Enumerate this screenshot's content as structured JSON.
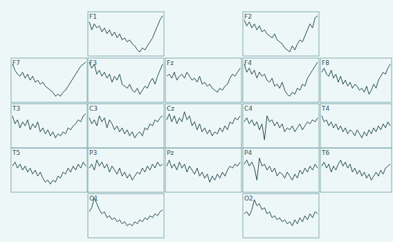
{
  "chart_data": [
    {
      "type": "line",
      "title": "F1",
      "color": "#1f4750",
      "ylim": [
        -10,
        10
      ],
      "tick_labels": false,
      "values": [
        6,
        2,
        5,
        3,
        4,
        1,
        3,
        0,
        2,
        -1,
        1,
        -2,
        0,
        -3,
        -2,
        -4,
        -3,
        -5,
        -6,
        -8,
        -9,
        -7,
        -8,
        -6,
        -4,
        -2,
        1,
        4,
        7,
        9
      ]
    },
    {
      "type": "line",
      "title": "F2",
      "color": "#1f4750",
      "ylim": [
        -10,
        10
      ],
      "tick_labels": false,
      "values": [
        7,
        4,
        6,
        3,
        5,
        2,
        4,
        1,
        2,
        0,
        -1,
        -2,
        0,
        -3,
        -4,
        -5,
        -7,
        -8,
        -9,
        -6,
        -8,
        -5,
        -3,
        -4,
        -1,
        2,
        5,
        3,
        8,
        9
      ]
    },
    {
      "type": "line",
      "title": "F7",
      "color": "#1f4750",
      "ylim": [
        -10,
        10
      ],
      "tick_labels": false,
      "values": [
        8,
        5,
        3,
        2,
        4,
        1,
        3,
        0,
        2,
        -1,
        0,
        -2,
        -1,
        -3,
        -4,
        -5,
        -6,
        -8,
        -7,
        -8,
        -6,
        -5,
        -3,
        -1,
        1,
        3,
        5,
        7,
        8,
        9
      ]
    },
    {
      "type": "line",
      "title": "F3",
      "color": "#1f4750",
      "ylim": [
        -10,
        10
      ],
      "tick_labels": false,
      "values": [
        9,
        6,
        8,
        3,
        5,
        2,
        4,
        1,
        3,
        -1,
        2,
        0,
        3,
        -2,
        -3,
        -4,
        -2,
        -5,
        -6,
        -4,
        -7,
        -5,
        -3,
        -4,
        -1,
        1,
        -2,
        2,
        5,
        8
      ]
    },
    {
      "type": "line",
      "title": "Fz",
      "color": "#1f4750",
      "ylim": [
        -10,
        10
      ],
      "tick_labels": false,
      "values": [
        2,
        3,
        1,
        4,
        0,
        2,
        3,
        1,
        4,
        2,
        0,
        1,
        -1,
        2,
        -2,
        -1,
        -3,
        -2,
        -4,
        -5,
        -6,
        -4,
        -5,
        -3,
        -2,
        1,
        3,
        2,
        4,
        6
      ]
    },
    {
      "type": "line",
      "title": "F4",
      "color": "#1f4750",
      "ylim": [
        -10,
        10
      ],
      "tick_labels": false,
      "values": [
        8,
        4,
        6,
        3,
        5,
        1,
        4,
        2,
        3,
        0,
        -1,
        1,
        -3,
        -2,
        -4,
        -1,
        -5,
        -7,
        -8,
        -6,
        -7,
        -4,
        -5,
        -2,
        -3,
        1,
        3,
        5,
        7,
        9
      ]
    },
    {
      "type": "line",
      "title": "F8",
      "color": "#1f4750",
      "ylim": [
        -10,
        10
      ],
      "tick_labels": false,
      "values": [
        4,
        6,
        3,
        2,
        5,
        1,
        3,
        -1,
        2,
        -2,
        0,
        -3,
        -1,
        -4,
        -2,
        -3,
        -5,
        -4,
        -6,
        -3,
        -7,
        -5,
        -2,
        -4,
        0,
        2,
        4,
        3,
        6,
        8
      ]
    },
    {
      "type": "line",
      "title": "T3",
      "color": "#1f4750",
      "ylim": [
        -10,
        10
      ],
      "tick_labels": false,
      "values": [
        5,
        1,
        3,
        -1,
        2,
        0,
        3,
        -2,
        1,
        -1,
        2,
        -3,
        -1,
        -4,
        -2,
        -5,
        -3,
        -6,
        -4,
        -5,
        -3,
        -4,
        -1,
        -2,
        0,
        1,
        3,
        2,
        5,
        6
      ]
    },
    {
      "type": "line",
      "title": "C3",
      "color": "#1f4750",
      "ylim": [
        -10,
        10
      ],
      "tick_labels": false,
      "values": [
        4,
        1,
        3,
        0,
        5,
        2,
        4,
        -1,
        3,
        1,
        -2,
        0,
        -3,
        -1,
        -4,
        -2,
        -5,
        -3,
        -6,
        -4,
        -3,
        -5,
        -1,
        -2,
        1,
        0,
        3,
        2,
        4,
        5
      ]
    },
    {
      "type": "line",
      "title": "Cz",
      "color": "#1f4750",
      "ylim": [
        -10,
        10
      ],
      "tick_labels": false,
      "values": [
        3,
        6,
        2,
        5,
        1,
        4,
        2,
        7,
        3,
        5,
        0,
        2,
        -2,
        1,
        -3,
        -1,
        -4,
        -2,
        -5,
        -3,
        -4,
        -1,
        -3,
        0,
        -2,
        2,
        1,
        4,
        3,
        5
      ]
    },
    {
      "type": "line",
      "title": "C4",
      "color": "#1f4750",
      "ylim": [
        -10,
        10
      ],
      "tick_labels": false,
      "values": [
        2,
        4,
        1,
        3,
        0,
        2,
        -2,
        1,
        -7,
        5,
        2,
        3,
        0,
        2,
        -1,
        1,
        -3,
        -1,
        -2,
        0,
        -3,
        -1,
        1,
        -2,
        0,
        2,
        1,
        3,
        2,
        4
      ]
    },
    {
      "type": "line",
      "title": "T4",
      "color": "#1f4750",
      "ylim": [
        -10,
        10
      ],
      "tick_labels": false,
      "values": [
        5,
        2,
        3,
        0,
        2,
        -1,
        1,
        -2,
        0,
        -3,
        -1,
        -4,
        -2,
        -3,
        -5,
        -2,
        -4,
        -6,
        -3,
        -5,
        -2,
        -4,
        -1,
        -3,
        0,
        -2,
        1,
        -1,
        2,
        0
      ]
    },
    {
      "type": "line",
      "title": "T5",
      "color": "#1f4750",
      "ylim": [
        -10,
        10
      ],
      "tick_labels": false,
      "values": [
        2,
        4,
        1,
        3,
        0,
        2,
        -1,
        1,
        -2,
        0,
        -3,
        -1,
        -4,
        -6,
        -5,
        -7,
        -5,
        -6,
        -3,
        -4,
        -1,
        -2,
        1,
        -1,
        2,
        0,
        3,
        1,
        4,
        2
      ]
    },
    {
      "type": "line",
      "title": "P3",
      "color": "#1f4750",
      "ylim": [
        -10,
        10
      ],
      "tick_labels": false,
      "values": [
        1,
        3,
        0,
        5,
        2,
        4,
        1,
        3,
        -1,
        2,
        0,
        -2,
        1,
        -3,
        -1,
        -4,
        -2,
        -5,
        -3,
        -1,
        -2,
        1,
        -1,
        2,
        0,
        3,
        1,
        4,
        2,
        3
      ]
    },
    {
      "type": "line",
      "title": "Pz",
      "color": "#1f4750",
      "ylim": [
        -10,
        10
      ],
      "tick_labels": false,
      "values": [
        2,
        5,
        1,
        3,
        0,
        4,
        1,
        3,
        -1,
        2,
        0,
        -2,
        1,
        -3,
        -1,
        -4,
        -2,
        -6,
        -3,
        -5,
        -2,
        -4,
        -1,
        -3,
        0,
        2,
        1,
        3,
        2,
        4
      ]
    },
    {
      "type": "line",
      "title": "P4",
      "color": "#1f4750",
      "ylim": [
        -10,
        10
      ],
      "tick_labels": false,
      "values": [
        3,
        5,
        2,
        4,
        1,
        -5,
        6,
        2,
        3,
        0,
        2,
        -1,
        1,
        -3,
        -1,
        -2,
        -4,
        -1,
        -3,
        -5,
        -2,
        -4,
        0,
        -2,
        1,
        -1,
        2,
        0,
        3,
        1
      ]
    },
    {
      "type": "line",
      "title": "T6",
      "color": "#1f4750",
      "ylim": [
        -10,
        10
      ],
      "tick_labels": false,
      "values": [
        2,
        4,
        1,
        3,
        -1,
        2,
        0,
        3,
        5,
        2,
        4,
        1,
        3,
        -1,
        1,
        -2,
        0,
        -3,
        -1,
        -4,
        -2,
        -5,
        -3,
        -1,
        -3,
        0,
        -2,
        1,
        2,
        3
      ]
    },
    {
      "type": "line",
      "title": "O1",
      "color": "#1f4750",
      "ylim": [
        -10,
        10
      ],
      "tick_labels": false,
      "values": [
        2,
        4,
        9,
        6,
        3,
        1,
        2,
        -1,
        0,
        -2,
        -1,
        -3,
        -2,
        -4,
        -3,
        -5,
        -4,
        -5,
        -3,
        -4,
        -2,
        -3,
        -1,
        -2,
        0,
        -1,
        1,
        0,
        2,
        3
      ]
    },
    {
      "type": "line",
      "title": "O2",
      "color": "#1f4750",
      "ylim": [
        -10,
        10
      ],
      "tick_labels": false,
      "values": [
        1,
        2,
        0,
        3,
        8,
        5,
        6,
        3,
        4,
        1,
        2,
        -1,
        0,
        -2,
        -1,
        -3,
        -2,
        -4,
        -3,
        -5,
        -2,
        -4,
        -1,
        -3,
        0,
        -2,
        1,
        -1,
        2,
        1
      ]
    }
  ]
}
